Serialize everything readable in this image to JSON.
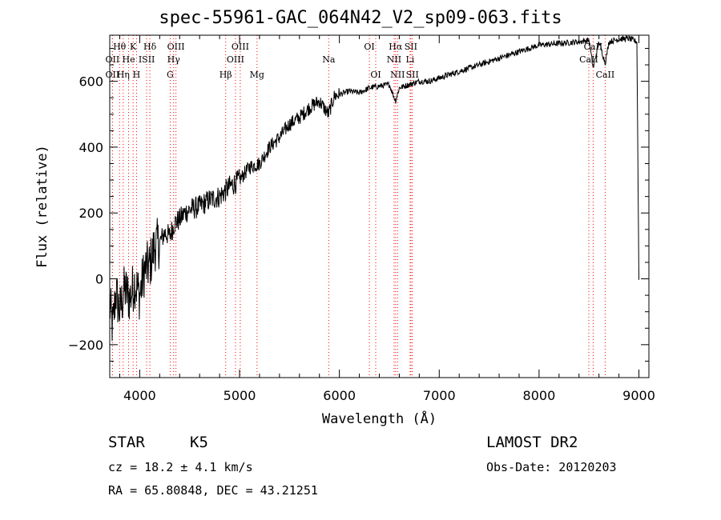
{
  "title": "spec-55961-GAC_064N42_V2_sp09-063.fits",
  "info": {
    "class": "STAR",
    "subclass": "K5",
    "survey": "LAMOST DR2",
    "cz": "cz = 18.2 ± 4.1 km/s",
    "obs_date": "Obs-Date: 20120203",
    "radec": "RA =  65.80848, DEC =  43.21251"
  },
  "chart_data": {
    "type": "line",
    "xlabel": "Wavelength (Å)",
    "ylabel": "Flux (relative)",
    "xlim": [
      3700,
      9100
    ],
    "ylim": [
      -300,
      740
    ],
    "xticks": [
      4000,
      5000,
      6000,
      7000,
      8000,
      9000
    ],
    "yticks": [
      -200,
      0,
      200,
      400,
      600
    ],
    "grid": false,
    "series": [
      {
        "x": [
          3700,
          3730,
          3760,
          3800,
          3850,
          3900,
          3950,
          4000,
          4050,
          4100,
          4150,
          4200,
          4250,
          4300,
          4350,
          4400,
          4450,
          4500,
          4600,
          4700,
          4800,
          4900,
          5000,
          5100,
          5200,
          5300,
          5400,
          5500,
          5600,
          5700,
          5800,
          5890,
          5950,
          6000,
          6100,
          6200,
          6300,
          6400,
          6500,
          6563,
          6600,
          6700,
          6800,
          6900,
          7000,
          7200,
          7400,
          7600,
          7800,
          8000,
          8200,
          8400,
          8500,
          8542,
          8600,
          8662,
          8700,
          8800,
          8900,
          8980,
          9000
        ],
        "y": [
          -80,
          -150,
          -40,
          -100,
          -30,
          -60,
          -10,
          -50,
          30,
          40,
          100,
          110,
          140,
          130,
          170,
          180,
          200,
          210,
          220,
          240,
          250,
          280,
          300,
          340,
          350,
          400,
          430,
          470,
          490,
          520,
          540,
          500,
          555,
          560,
          570,
          565,
          580,
          585,
          590,
          540,
          580,
          590,
          600,
          600,
          610,
          630,
          650,
          670,
          690,
          710,
          715,
          720,
          725,
          640,
          720,
          655,
          720,
          728,
          730,
          720,
          0
        ]
      }
    ],
    "lines": [
      {
        "name": "Hθ",
        "wave": 3798,
        "row": 1,
        "color": "#ff0000"
      },
      {
        "name": "K",
        "wave": 3934,
        "row": 1,
        "color": "#ff0000"
      },
      {
        "name": "Hδ",
        "wave": 4102,
        "row": 1,
        "color": "#ff0000"
      },
      {
        "name": "OIII",
        "wave": 4363,
        "row": 1,
        "color": "#ff0000"
      },
      {
        "name": "OIII",
        "wave": 5007,
        "row": 1,
        "color": "#ff0000"
      },
      {
        "name": "OI",
        "wave": 6300,
        "row": 1,
        "color": "#ff0000"
      },
      {
        "name": "Hα",
        "wave": 6563,
        "row": 1,
        "color": "#ff0000"
      },
      {
        "name": "SII",
        "wave": 6716,
        "row": 1,
        "color": "#ff0000"
      },
      {
        "name": "CaII",
        "wave": 8542,
        "row": 1,
        "color": "#ff0000"
      },
      {
        "name": "OII",
        "wave": 3727,
        "row": 2,
        "color": "#ff0000"
      },
      {
        "name": "He",
        "wave": 3889,
        "row": 2,
        "color": "#ff0000"
      },
      {
        "name": "ISII",
        "wave": 4070,
        "row": 2,
        "color": "#ff0000"
      },
      {
        "name": "Hγ",
        "wave": 4340,
        "row": 2,
        "color": "#ff0000"
      },
      {
        "name": "OIII",
        "wave": 4959,
        "row": 2,
        "color": "#ff0000"
      },
      {
        "name": "Na",
        "wave": 5893,
        "row": 2,
        "color": "#ff0000"
      },
      {
        "name": "NII",
        "wave": 6548,
        "row": 2,
        "color": "#ff0000"
      },
      {
        "name": "Li",
        "wave": 6708,
        "row": 2,
        "color": "#ff0000"
      },
      {
        "name": "CaII",
        "wave": 8498,
        "row": 2,
        "color": "#ff0000"
      },
      {
        "name": "OII",
        "wave": 3727,
        "row": 3,
        "color": "#ff0000"
      },
      {
        "name": "Hη",
        "wave": 3835,
        "row": 3,
        "color": "#ff0000"
      },
      {
        "name": "H",
        "wave": 3968,
        "row": 3,
        "color": "#ff0000"
      },
      {
        "name": "G",
        "wave": 4305,
        "row": 3,
        "color": "#ff0000"
      },
      {
        "name": "Hβ",
        "wave": 4861,
        "row": 3,
        "color": "#ff0000"
      },
      {
        "name": "Mg",
        "wave": 5175,
        "row": 3,
        "color": "#ff0000"
      },
      {
        "name": "OI",
        "wave": 6364,
        "row": 3,
        "color": "#ff0000"
      },
      {
        "name": "NII",
        "wave": 6583,
        "row": 3,
        "color": "#ff0000"
      },
      {
        "name": "SII",
        "wave": 6731,
        "row": 3,
        "color": "#ff0000"
      },
      {
        "name": "CaII",
        "wave": 8662,
        "row": 3,
        "color": "#ff0000"
      }
    ]
  }
}
